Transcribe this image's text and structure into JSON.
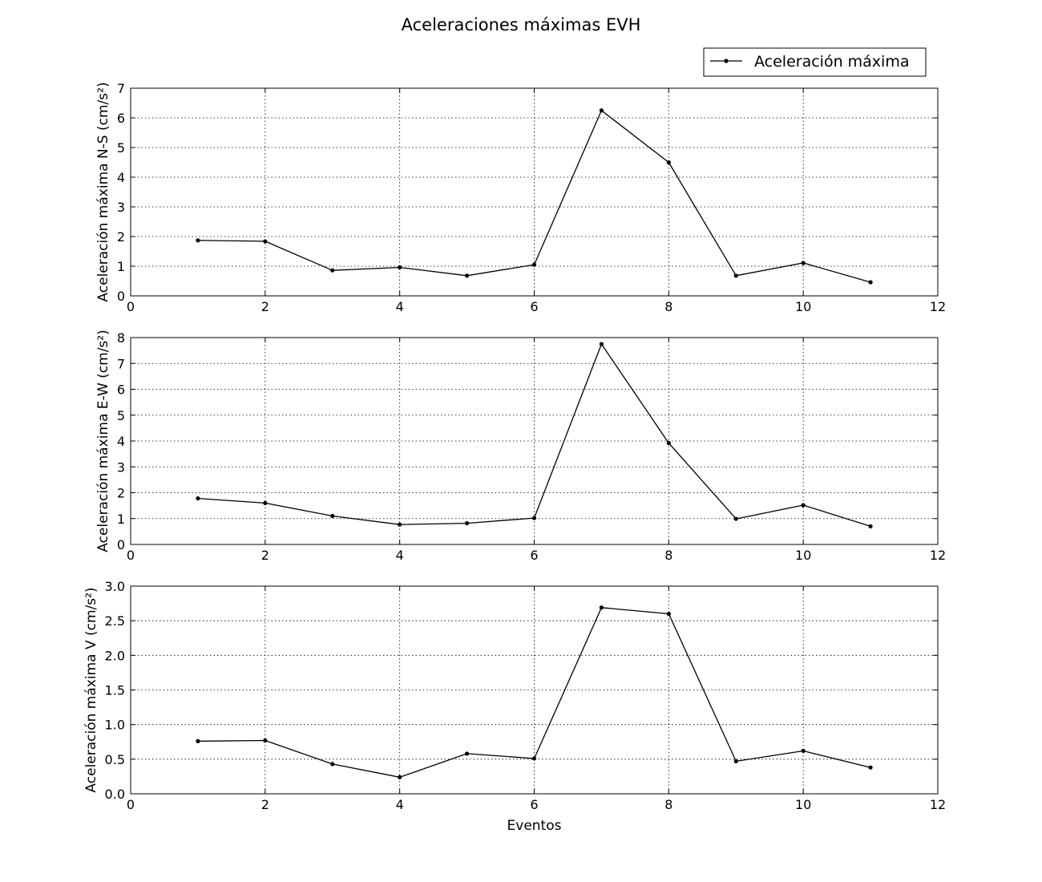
{
  "figure": {
    "title": "Aceleraciones máximas EVH",
    "legend": {
      "label": "Aceleración máxima",
      "placement": "top-right"
    },
    "line_color": "#000000",
    "grid_color": "#000000"
  },
  "chart_data": [
    {
      "type": "line",
      "title": "",
      "xlabel": "",
      "ylabel": "Aceleración máxima N-S (cm/s²)",
      "x": [
        1,
        2,
        3,
        4,
        5,
        6,
        7,
        8,
        9,
        10,
        11
      ],
      "series": [
        {
          "name": "Aceleración máxima",
          "values": [
            1.87,
            1.84,
            0.86,
            0.96,
            0.68,
            1.05,
            6.25,
            4.5,
            0.68,
            1.11,
            0.46
          ]
        }
      ],
      "xlim": [
        0,
        12
      ],
      "ylim": [
        0,
        7
      ],
      "xticks": [
        0,
        2,
        4,
        6,
        8,
        10,
        12
      ],
      "xtick_labels": [
        "0",
        "2",
        "4",
        "6",
        "8",
        "10",
        "12"
      ],
      "yticks": [
        0,
        1,
        2,
        3,
        4,
        5,
        6,
        7
      ],
      "ytick_labels": [
        "0",
        "1",
        "2",
        "3",
        "4",
        "5",
        "6",
        "7"
      ],
      "grid": true
    },
    {
      "type": "line",
      "title": "",
      "xlabel": "",
      "ylabel": "Aceleración máxima E-W (cm/s²)",
      "x": [
        1,
        2,
        3,
        4,
        5,
        6,
        7,
        8,
        9,
        10,
        11
      ],
      "series": [
        {
          "name": "Aceleración máxima",
          "values": [
            1.78,
            1.6,
            1.1,
            0.77,
            0.82,
            1.02,
            7.75,
            3.92,
            0.99,
            1.52,
            0.7
          ]
        }
      ],
      "xlim": [
        0,
        12
      ],
      "ylim": [
        0,
        8
      ],
      "xticks": [
        0,
        2,
        4,
        6,
        8,
        10,
        12
      ],
      "xtick_labels": [
        "0",
        "2",
        "4",
        "6",
        "8",
        "10",
        "12"
      ],
      "yticks": [
        0,
        1,
        2,
        3,
        4,
        5,
        6,
        7,
        8
      ],
      "ytick_labels": [
        "0",
        "1",
        "2",
        "3",
        "4",
        "5",
        "6",
        "7",
        "8"
      ],
      "grid": true
    },
    {
      "type": "line",
      "title": "",
      "xlabel": "Eventos",
      "ylabel": "Aceleración máxima V (cm/s²)",
      "x": [
        1,
        2,
        3,
        4,
        5,
        6,
        7,
        8,
        9,
        10,
        11
      ],
      "series": [
        {
          "name": "Aceleración máxima",
          "values": [
            0.76,
            0.77,
            0.43,
            0.24,
            0.58,
            0.51,
            2.69,
            2.6,
            0.47,
            0.62,
            0.38
          ]
        }
      ],
      "xlim": [
        0,
        12
      ],
      "ylim": [
        0,
        3
      ],
      "xticks": [
        0,
        2,
        4,
        6,
        8,
        10,
        12
      ],
      "xtick_labels": [
        "0",
        "2",
        "4",
        "6",
        "8",
        "10",
        "12"
      ],
      "yticks": [
        0,
        0.5,
        1.0,
        1.5,
        2.0,
        2.5,
        3.0
      ],
      "ytick_labels": [
        "0.0",
        "0.5",
        "1.0",
        "1.5",
        "2.0",
        "2.5",
        "3.0"
      ],
      "grid": true
    }
  ]
}
